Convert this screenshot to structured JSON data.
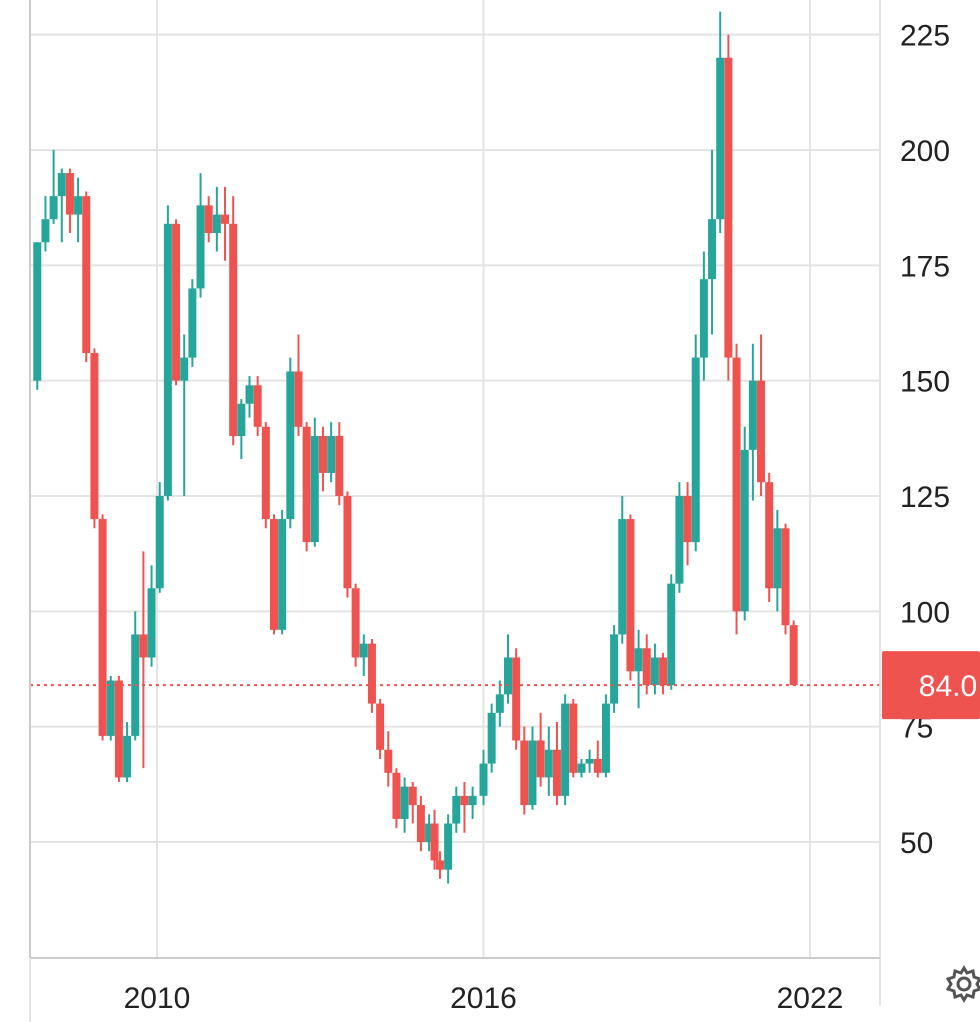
{
  "chart_data": {
    "type": "candlestick",
    "x_tick_labels": [
      "2010",
      "2016",
      "2022"
    ],
    "y_ticks": [
      50,
      75,
      100,
      125,
      150,
      175,
      200,
      225
    ],
    "ylim": [
      25,
      230
    ],
    "xlim": [
      2007.75,
      2023.5
    ],
    "grid": true,
    "last_price": 84.0,
    "last_price_label": "84.0",
    "colors": {
      "up": "#26a69a",
      "down": "#ef5350",
      "grid": "#e4e4e4",
      "axis": "#cccccc"
    },
    "candles": [
      [
        2007.8,
        150,
        180,
        148,
        180
      ],
      [
        2007.95,
        180,
        190,
        178,
        185
      ],
      [
        2008.1,
        185,
        200,
        184,
        190
      ],
      [
        2008.25,
        190,
        196,
        180,
        195
      ],
      [
        2008.4,
        195,
        196,
        182,
        186
      ],
      [
        2008.55,
        186,
        194,
        180,
        190
      ],
      [
        2008.7,
        190,
        191,
        154,
        156
      ],
      [
        2008.85,
        156,
        157,
        118,
        120
      ],
      [
        2009.0,
        120,
        121,
        72,
        73
      ],
      [
        2009.15,
        73,
        86,
        72,
        85
      ],
      [
        2009.3,
        85,
        86,
        63,
        64
      ],
      [
        2009.45,
        64,
        76,
        63,
        73
      ],
      [
        2009.6,
        73,
        100,
        72,
        95
      ],
      [
        2009.75,
        95,
        113,
        66,
        90
      ],
      [
        2009.9,
        90,
        110,
        88,
        105
      ],
      [
        2010.05,
        105,
        128,
        104,
        125
      ],
      [
        2010.2,
        125,
        188,
        124,
        184
      ],
      [
        2010.35,
        184,
        185,
        149,
        150
      ],
      [
        2010.5,
        150,
        160,
        125,
        155
      ],
      [
        2010.65,
        155,
        172,
        153,
        170
      ],
      [
        2010.8,
        170,
        195,
        168,
        188
      ],
      [
        2010.95,
        188,
        190,
        180,
        182
      ],
      [
        2011.1,
        182,
        192,
        178,
        186
      ],
      [
        2011.25,
        186,
        192,
        176,
        184
      ],
      [
        2011.4,
        184,
        190,
        136,
        138
      ],
      [
        2011.55,
        138,
        146,
        133,
        145
      ],
      [
        2011.7,
        145,
        151,
        142,
        149
      ],
      [
        2011.85,
        149,
        151,
        138,
        140
      ],
      [
        2012.0,
        140,
        141,
        118,
        120
      ],
      [
        2012.15,
        120,
        121,
        95,
        96
      ],
      [
        2012.3,
        96,
        122,
        95,
        120
      ],
      [
        2012.45,
        120,
        155,
        118,
        152
      ],
      [
        2012.6,
        152,
        160,
        138,
        140
      ],
      [
        2012.75,
        140,
        141,
        113,
        115
      ],
      [
        2012.9,
        115,
        142,
        114,
        138
      ],
      [
        2013.05,
        138,
        140,
        126,
        130
      ],
      [
        2013.2,
        130,
        141,
        128,
        138
      ],
      [
        2013.35,
        138,
        141,
        123,
        125
      ],
      [
        2013.5,
        125,
        126,
        103,
        105
      ],
      [
        2013.65,
        105,
        106,
        88,
        90
      ],
      [
        2013.8,
        90,
        95,
        86,
        93
      ],
      [
        2013.95,
        93,
        94,
        78,
        80
      ],
      [
        2014.1,
        80,
        81,
        68,
        70
      ],
      [
        2014.25,
        70,
        74,
        62,
        65
      ],
      [
        2014.4,
        65,
        66,
        53,
        55
      ],
      [
        2014.55,
        55,
        64,
        52,
        62
      ],
      [
        2014.7,
        62,
        63,
        54,
        58
      ],
      [
        2014.85,
        58,
        60,
        48,
        50
      ],
      [
        2015.0,
        50,
        56,
        48,
        54
      ],
      [
        2015.1,
        54,
        57,
        44,
        46
      ],
      [
        2015.2,
        46,
        48,
        42,
        44
      ],
      [
        2015.35,
        44,
        56,
        41,
        54
      ],
      [
        2015.5,
        54,
        62,
        52,
        60
      ],
      [
        2015.65,
        60,
        63,
        52,
        58
      ],
      [
        2015.8,
        58,
        62,
        55,
        60
      ],
      [
        2016.0,
        60,
        70,
        58,
        67
      ],
      [
        2016.15,
        67,
        80,
        65,
        78
      ],
      [
        2016.3,
        78,
        85,
        75,
        82
      ],
      [
        2016.45,
        82,
        95,
        80,
        90
      ],
      [
        2016.6,
        90,
        92,
        70,
        72
      ],
      [
        2016.75,
        72,
        75,
        56,
        58
      ],
      [
        2016.9,
        58,
        75,
        57,
        72
      ],
      [
        2017.05,
        72,
        78,
        62,
        64
      ],
      [
        2017.2,
        64,
        75,
        60,
        70
      ],
      [
        2017.35,
        70,
        76,
        58,
        60
      ],
      [
        2017.5,
        60,
        82,
        58,
        80
      ],
      [
        2017.65,
        80,
        81,
        64,
        65
      ],
      [
        2017.8,
        65,
        68,
        64,
        67
      ],
      [
        2017.95,
        67,
        70,
        65,
        68
      ],
      [
        2018.1,
        68,
        72,
        64,
        65
      ],
      [
        2018.25,
        65,
        82,
        64,
        80
      ],
      [
        2018.4,
        80,
        97,
        78,
        95
      ],
      [
        2018.55,
        95,
        125,
        93,
        120
      ],
      [
        2018.7,
        120,
        121,
        85,
        87
      ],
      [
        2018.85,
        87,
        96,
        79,
        92
      ],
      [
        2019.0,
        92,
        95,
        82,
        84
      ],
      [
        2019.15,
        84,
        93,
        82,
        90
      ],
      [
        2019.3,
        90,
        91,
        82,
        84
      ],
      [
        2019.45,
        84,
        108,
        83,
        106
      ],
      [
        2019.6,
        106,
        128,
        104,
        125
      ],
      [
        2019.75,
        125,
        128,
        110,
        115
      ],
      [
        2019.9,
        115,
        160,
        113,
        155
      ],
      [
        2020.05,
        155,
        178,
        150,
        172
      ],
      [
        2020.2,
        172,
        200,
        160,
        185
      ],
      [
        2020.35,
        185,
        230,
        182,
        220
      ],
      [
        2020.5,
        220,
        225,
        150,
        155
      ],
      [
        2020.65,
        155,
        158,
        95,
        100
      ],
      [
        2020.8,
        100,
        140,
        98,
        135
      ],
      [
        2020.95,
        135,
        158,
        124,
        150
      ],
      [
        2021.1,
        150,
        160,
        125,
        128
      ],
      [
        2021.25,
        128,
        130,
        102,
        105
      ],
      [
        2021.4,
        105,
        122,
        100,
        118
      ],
      [
        2021.55,
        118,
        119,
        95,
        97
      ],
      [
        2021.7,
        97,
        98,
        84,
        84
      ]
    ]
  }
}
